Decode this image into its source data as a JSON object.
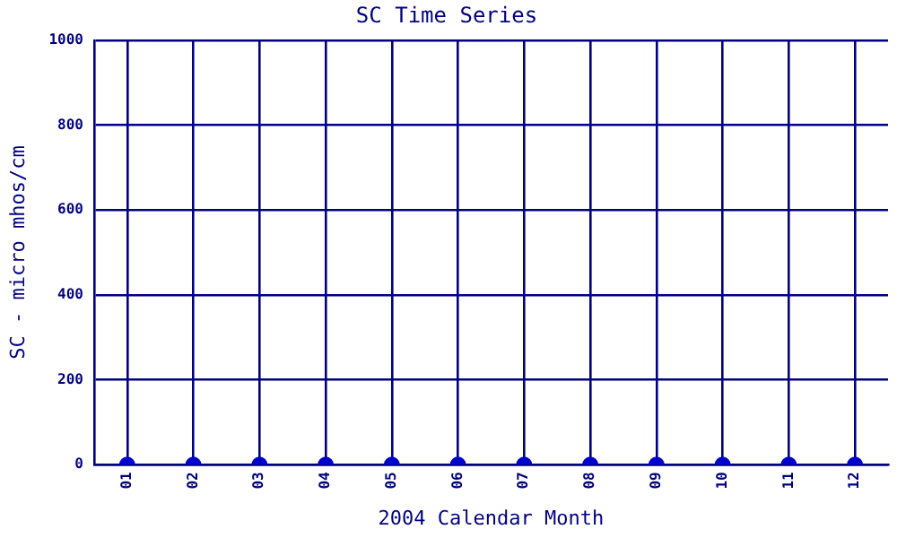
{
  "chart_data": {
    "type": "scatter",
    "title": "SC Time Series",
    "xlabel": "2004 Calendar Month",
    "ylabel": "SC - micro mhos/cm",
    "categories": [
      "01",
      "02",
      "03",
      "04",
      "05",
      "06",
      "07",
      "08",
      "09",
      "10",
      "11",
      "12"
    ],
    "values": [
      0,
      0,
      0,
      0,
      0,
      0,
      0,
      0,
      0,
      0,
      0,
      0
    ],
    "color": "#0000cc",
    "marker": "circle",
    "ylim": [
      0,
      1000
    ],
    "yticks": [
      0,
      200,
      400,
      600,
      800,
      1000
    ],
    "grid": true,
    "legend": false
  }
}
